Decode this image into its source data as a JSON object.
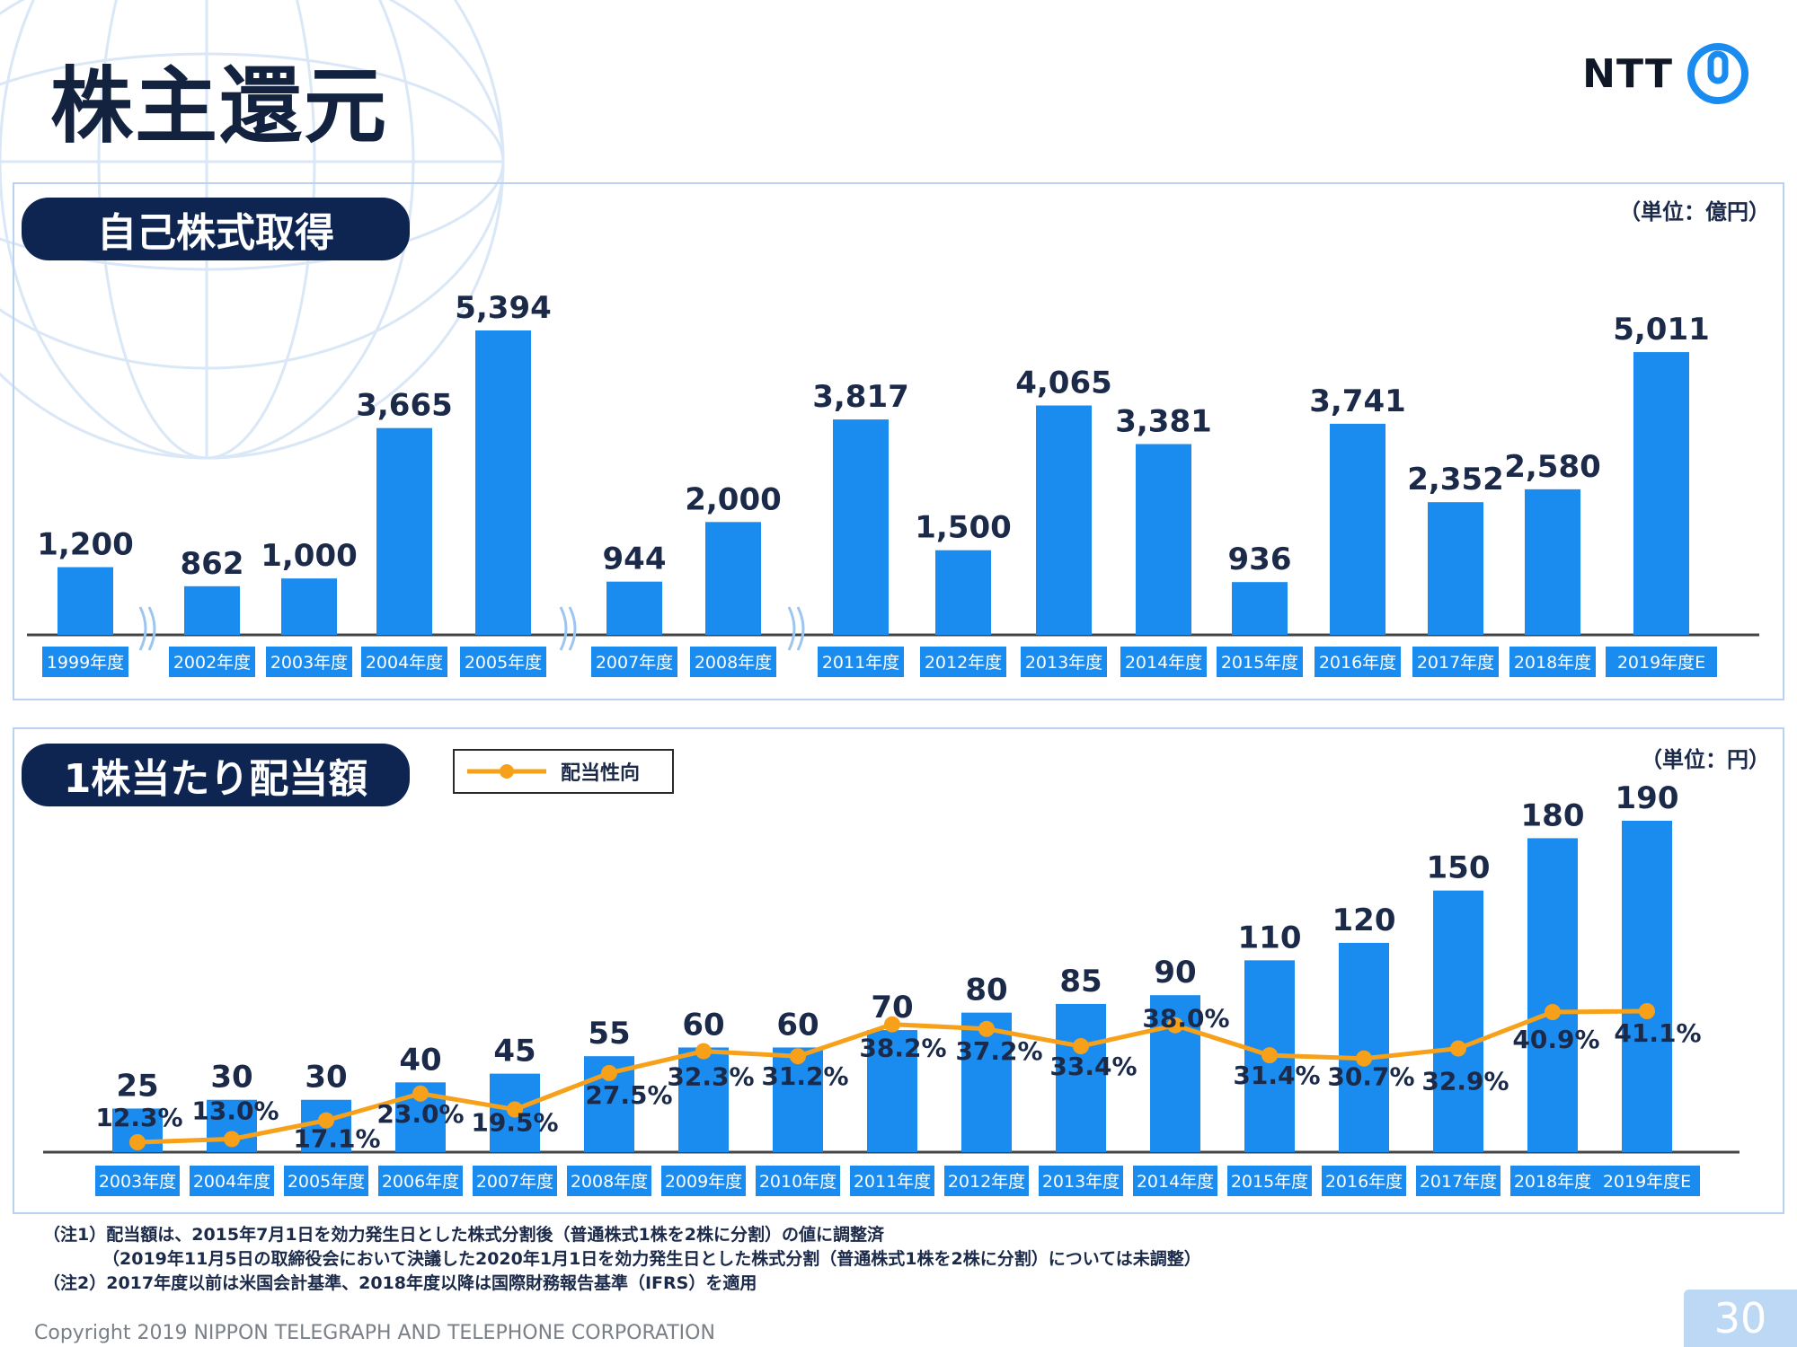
{
  "slide": {
    "title": "株主還元",
    "logo_text": "NTT",
    "page_number": "30",
    "copyright": "Copyright 2019 NIPPON TELEGRAPH AND TELEPHONE CORPORATION",
    "notes": [
      "（注1）配当額は、2015年7月1日を効力発生日とした株式分割後（普通株式1株を2株に分割）の値に調整済",
      "（2019年11月5日の取締役会において決議した2020年1月1日を効力発生日とした株式分割（普通株式1株を2株に分割）については未調整）",
      "（注2）2017年度以前は米国会計基準、2018年度以降は国際財務報告基準（IFRS）を適用"
    ]
  },
  "buyback": {
    "section_title": "自己株式取得",
    "unit": "（単位：億円）"
  },
  "dividend": {
    "section_title": "1株当たり配当額",
    "unit": "（単位：円）",
    "legend_label": "配当性向"
  },
  "colors": {
    "bar": "#1a8cf0",
    "label_box": "#1a8cf0",
    "line": "#f7a11a",
    "navy": "#0e2552",
    "axis": "#444444"
  },
  "chart_data": [
    {
      "type": "bar",
      "title": "自己株式取得",
      "unit": "億円",
      "categories": [
        "1999年度",
        "2002年度",
        "2003年度",
        "2004年度",
        "2005年度",
        "2007年度",
        "2008年度",
        "2011年度",
        "2012年度",
        "2013年度",
        "2014年度",
        "2015年度",
        "2016年度",
        "2017年度",
        "2018年度",
        "2019年度E"
      ],
      "values": [
        1200,
        862,
        1000,
        3665,
        5394,
        944,
        2000,
        3817,
        1500,
        4065,
        3381,
        936,
        3741,
        2352,
        2580,
        5011
      ],
      "value_labels": [
        "1,200",
        "862",
        "1,000",
        "3,665",
        "5,394",
        "944",
        "2,000",
        "3,817",
        "1,500",
        "4,065",
        "3,381",
        "936",
        "3,741",
        "2,352",
        "2,580",
        "5,011"
      ],
      "axis_breaks_after": [
        "1999年度",
        "2005年度",
        "2008年度"
      ],
      "ylim": [
        0,
        6000
      ]
    },
    {
      "type": "bar",
      "title": "1株当たり配当額",
      "unit": "円",
      "categories": [
        "2003年度",
        "2004年度",
        "2005年度",
        "2006年度",
        "2007年度",
        "2008年度",
        "2009年度",
        "2010年度",
        "2011年度",
        "2012年度",
        "2013年度",
        "2014年度",
        "2015年度",
        "2016年度",
        "2017年度",
        "2018年度",
        "2019年度E"
      ],
      "values": [
        25,
        30,
        30,
        40,
        45,
        55,
        60,
        60,
        70,
        80,
        85,
        90,
        110,
        120,
        150,
        180,
        190
      ],
      "value_labels": [
        "25",
        "30",
        "30",
        "40",
        "45",
        "55",
        "60",
        "60",
        "70",
        "80",
        "85",
        "90",
        "110",
        "120",
        "150",
        "180",
        "190"
      ],
      "ylim": [
        0,
        220
      ],
      "line_series": {
        "name": "配当性向",
        "values": [
          12.3,
          13.0,
          17.1,
          23.0,
          19.5,
          27.5,
          32.3,
          31.2,
          38.2,
          37.2,
          33.4,
          38.0,
          31.4,
          30.7,
          32.9,
          40.9,
          41.1
        ],
        "labels": [
          "12.3%",
          "13.0%",
          "17.1%",
          "23.0%",
          "19.5%",
          "27.5%",
          "32.3%",
          "31.2%",
          "38.2%",
          "37.2%",
          "33.4%",
          "38.0%",
          "31.4%",
          "30.7%",
          "32.9%",
          "40.9%",
          "41.1%"
        ],
        "ylim": [
          0,
          100
        ]
      }
    }
  ]
}
